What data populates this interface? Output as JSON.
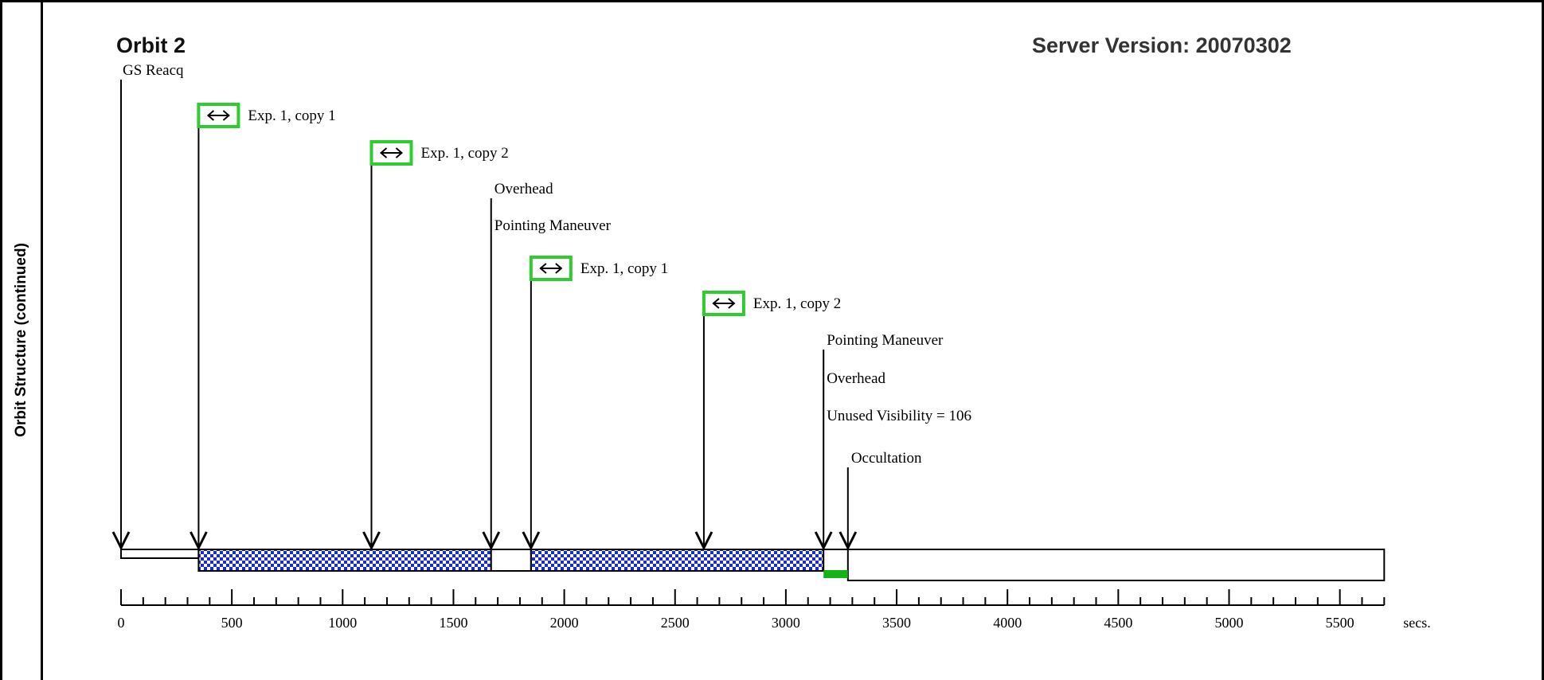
{
  "side_label": "Orbit Structure (continued)",
  "title": "Orbit 2",
  "server_version": "Server Version: 20070302",
  "colors": {
    "exposure_box": "#2ecc2e",
    "hatch_blue": "#1a2bd6",
    "green_bar": "#15b315"
  },
  "axis": {
    "min": 0,
    "max": 5700,
    "unit_label": "secs.",
    "tick_labels": [
      "0",
      "500",
      "1000",
      "1500",
      "2000",
      "2500",
      "3000",
      "3500",
      "4000",
      "4500",
      "5000",
      "5500"
    ]
  },
  "events": [
    {
      "label": "GS Reacq",
      "time": 0,
      "exposure_icon": false
    },
    {
      "label": "Exp. 1, copy 1",
      "time": 350,
      "exposure_icon": true
    },
    {
      "label": "Exp. 1, copy 2",
      "time": 1130,
      "exposure_icon": true
    },
    {
      "label": "Overhead",
      "time": 1670,
      "exposure_icon": false
    },
    {
      "label": "Pointing Maneuver",
      "time": 1670,
      "exposure_icon": false
    },
    {
      "label": "Exp. 1, copy 1",
      "time": 1850,
      "exposure_icon": true
    },
    {
      "label": "Exp. 1, copy 2",
      "time": 2630,
      "exposure_icon": true
    },
    {
      "label": "Pointing Maneuver",
      "time": 3170,
      "exposure_icon": false
    },
    {
      "label": "Overhead",
      "time": 3170,
      "exposure_icon": false
    },
    {
      "label": "Unused Visibility = 106",
      "time": 3170,
      "exposure_icon": false
    },
    {
      "label": "Occultation",
      "time": 3280,
      "exposure_icon": false
    }
  ],
  "segments": [
    {
      "start": 0,
      "end": 350,
      "fill": "plain",
      "level": "upper"
    },
    {
      "start": 350,
      "end": 1670,
      "fill": "hatched",
      "level": "lower"
    },
    {
      "start": 1670,
      "end": 1850,
      "fill": "plain",
      "level": "lower"
    },
    {
      "start": 1850,
      "end": 3170,
      "fill": "hatched",
      "level": "lower"
    },
    {
      "start": 3170,
      "end": 3350,
      "fill": "plain",
      "level": "lower"
    },
    {
      "start": 3280,
      "end": 5700,
      "fill": "plain",
      "level": "full"
    }
  ],
  "green_bar": {
    "start": 3170,
    "end": 3280
  }
}
